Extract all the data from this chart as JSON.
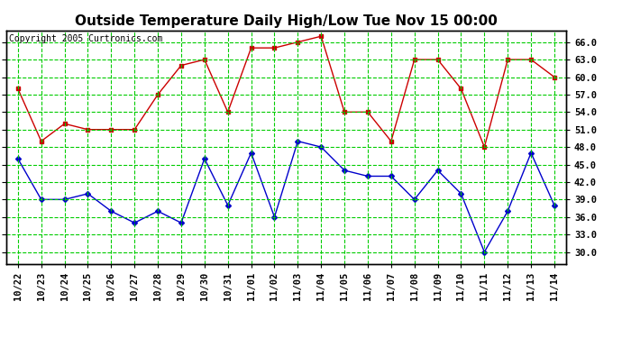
{
  "title": "Outside Temperature Daily High/Low Tue Nov 15 00:00",
  "copyright": "Copyright 2005 Curtronics.com",
  "labels": [
    "10/22",
    "10/23",
    "10/24",
    "10/25",
    "10/26",
    "10/27",
    "10/28",
    "10/29",
    "10/30",
    "10/31",
    "11/01",
    "11/02",
    "11/03",
    "11/04",
    "11/05",
    "11/06",
    "11/07",
    "11/08",
    "11/09",
    "11/10",
    "11/11",
    "11/12",
    "11/13",
    "11/14"
  ],
  "high": [
    58,
    49,
    52,
    51,
    51,
    51,
    57,
    62,
    63,
    54,
    65,
    65,
    66,
    67,
    54,
    54,
    49,
    63,
    63,
    58,
    48,
    63,
    63,
    60
  ],
  "low": [
    46,
    39,
    39,
    40,
    37,
    35,
    37,
    35,
    46,
    38,
    47,
    36,
    49,
    48,
    44,
    43,
    43,
    39,
    44,
    40,
    30,
    37,
    47,
    38
  ],
  "high_color": "#cc0000",
  "low_color": "#0000cc",
  "bg_color": "#ffffff",
  "plot_bg_color": "#ffffff",
  "grid_color": "#00cc00",
  "ylim_min": 28,
  "ylim_max": 68,
  "yticks": [
    30.0,
    33.0,
    36.0,
    39.0,
    42.0,
    45.0,
    48.0,
    51.0,
    54.0,
    57.0,
    60.0,
    63.0,
    66.0
  ],
  "title_fontsize": 11,
  "copyright_fontsize": 7,
  "tick_fontsize": 7.5
}
